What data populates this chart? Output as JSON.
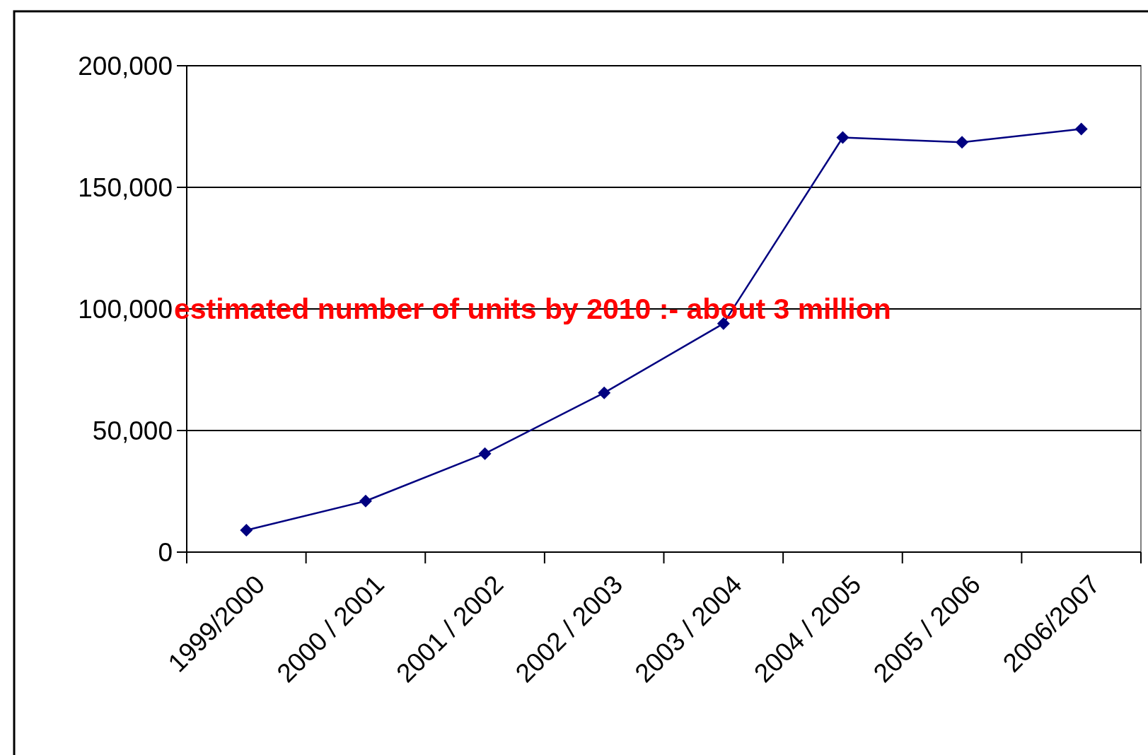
{
  "chart_data": {
    "type": "line",
    "categories": [
      "1999/2000",
      "2000 / 2001",
      "2001 / 2002",
      "2002 / 2003",
      "2003 / 2004",
      "2004 / 2005",
      "2005 / 2006",
      "2006/2007"
    ],
    "series": [
      {
        "color": "#000080",
        "values": [
          9000,
          21000,
          40500,
          65500,
          94000,
          170500,
          168500,
          174000
        ]
      }
    ],
    "ylim": [
      0,
      200000
    ],
    "yticks": [
      {
        "value": 0,
        "label": "0"
      },
      {
        "value": 50000,
        "label": "50,000"
      },
      {
        "value": 100000,
        "label": "100,000"
      },
      {
        "value": 150000,
        "label": "150,000"
      },
      {
        "value": 200000,
        "label": "200,000"
      }
    ],
    "grid": "y",
    "marker": "diamond",
    "line_style": "solid",
    "annotations": [
      "estimated number of units by 2010  :-  about 3 million"
    ]
  }
}
